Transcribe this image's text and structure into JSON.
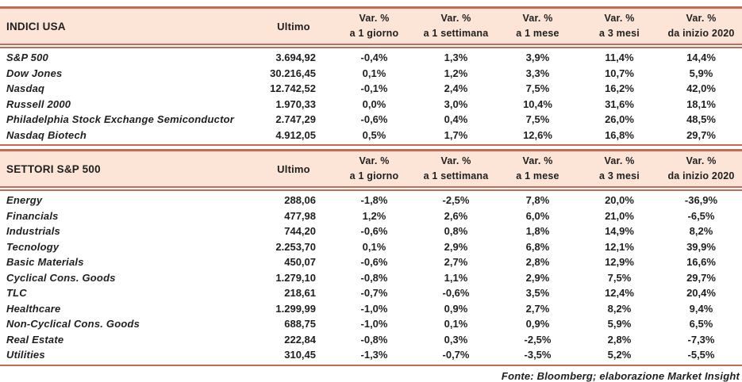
{
  "colors": {
    "header_fill": "#fce4d6",
    "rule_line": "#c66a58",
    "text": "#1f1f1f"
  },
  "footer": {
    "source_note": "Fonte: Bloomberg; elaborazione Market Insight"
  },
  "tables": [
    {
      "title": "INDICI USA",
      "ultimo_header": "Ultimo",
      "var_headers": [
        {
          "line1": "Var. %",
          "line2": "a 1 giorno"
        },
        {
          "line1": "Var. %",
          "line2": "a 1 settimana"
        },
        {
          "line1": "Var. %",
          "line2": "a 1 mese"
        },
        {
          "line1": "Var. %",
          "line2": "a 3 mesi"
        },
        {
          "line1": "Var. %",
          "line2": "da inizio 2020"
        }
      ],
      "rows": [
        {
          "name": "S&P 500",
          "ultimo": "3.694,92",
          "vars": [
            "-0,4%",
            "1,3%",
            "3,9%",
            "11,4%",
            "14,4%"
          ]
        },
        {
          "name": "Dow Jones",
          "ultimo": "30.216,45",
          "vars": [
            "0,1%",
            "1,2%",
            "3,3%",
            "10,7%",
            "5,9%"
          ]
        },
        {
          "name": "Nasdaq",
          "ultimo": "12.742,52",
          "vars": [
            "-0,1%",
            "2,4%",
            "7,5%",
            "16,2%",
            "42,0%"
          ]
        },
        {
          "name": "Russell 2000",
          "ultimo": "1.970,33",
          "vars": [
            "0,0%",
            "3,0%",
            "10,4%",
            "31,6%",
            "18,1%"
          ]
        },
        {
          "name": "Philadelphia Stock Exchange Semiconductor",
          "ultimo": "2.747,29",
          "vars": [
            "-0,6%",
            "0,4%",
            "7,5%",
            "26,0%",
            "48,5%"
          ]
        },
        {
          "name": "Nasdaq Biotech",
          "ultimo": "4.912,05",
          "vars": [
            "0,5%",
            "1,7%",
            "12,6%",
            "16,8%",
            "29,7%"
          ]
        }
      ]
    },
    {
      "title": "SETTORI S&P 500",
      "ultimo_header": "Ultimo",
      "var_headers": [
        {
          "line1": "Var. %",
          "line2": "a 1 giorno"
        },
        {
          "line1": "Var. %",
          "line2": "a 1 settimana"
        },
        {
          "line1": "Var. %",
          "line2": "a 1 mese"
        },
        {
          "line1": "Var. %",
          "line2": "a 3 mesi"
        },
        {
          "line1": "Var. %",
          "line2": "da inizio 2020"
        }
      ],
      "rows": [
        {
          "name": "Energy",
          "ultimo": "288,06",
          "vars": [
            "-1,8%",
            "-2,5%",
            "7,8%",
            "20,0%",
            "-36,9%"
          ]
        },
        {
          "name": "Financials",
          "ultimo": "477,98",
          "vars": [
            "1,2%",
            "2,6%",
            "6,0%",
            "21,0%",
            "-6,5%"
          ]
        },
        {
          "name": "Industrials",
          "ultimo": "744,20",
          "vars": [
            "-0,6%",
            "0,8%",
            "1,8%",
            "14,9%",
            "8,2%"
          ]
        },
        {
          "name": "Tecnology",
          "ultimo": "2.253,70",
          "vars": [
            "0,1%",
            "2,9%",
            "6,8%",
            "12,1%",
            "39,9%"
          ]
        },
        {
          "name": "Basic Materials",
          "ultimo": "450,07",
          "vars": [
            "-0,6%",
            "2,7%",
            "2,8%",
            "12,9%",
            "16,6%"
          ]
        },
        {
          "name": "Cyclical Cons. Goods",
          "ultimo": "1.279,10",
          "vars": [
            "-0,8%",
            "1,1%",
            "2,9%",
            "7,5%",
            "29,7%"
          ]
        },
        {
          "name": "TLC",
          "ultimo": "218,61",
          "vars": [
            "-0,7%",
            "-0,6%",
            "3,5%",
            "12,4%",
            "20,4%"
          ]
        },
        {
          "name": "Healthcare",
          "ultimo": "1.299,99",
          "vars": [
            "-1,0%",
            "0,9%",
            "2,7%",
            "8,2%",
            "9,4%"
          ]
        },
        {
          "name": "Non-Cyclical Cons. Goods",
          "ultimo": "688,75",
          "vars": [
            "-1,0%",
            "0,1%",
            "0,9%",
            "5,9%",
            "6,5%"
          ]
        },
        {
          "name": "Real Estate",
          "ultimo": "222,84",
          "vars": [
            "-0,8%",
            "0,3%",
            "-2,5%",
            "2,8%",
            "-7,3%"
          ]
        },
        {
          "name": "Utilities",
          "ultimo": "310,45",
          "vars": [
            "-1,3%",
            "-0,7%",
            "-3,5%",
            "5,2%",
            "-5,5%"
          ]
        }
      ]
    }
  ]
}
